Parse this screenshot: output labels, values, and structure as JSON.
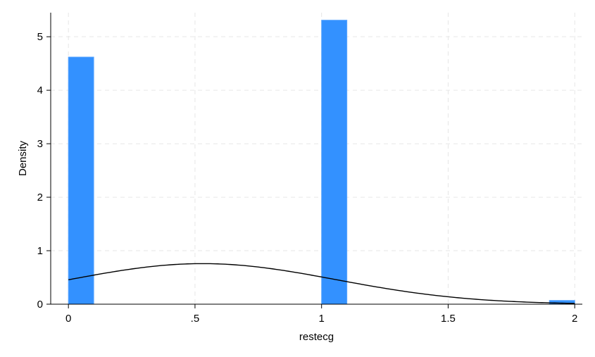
{
  "chart_data": {
    "type": "bar",
    "subtype": "histogram",
    "xlabel": "restecg",
    "ylabel": "Density",
    "xlim": [
      -0.07,
      2.03
    ],
    "ylim": [
      0,
      5.45
    ],
    "x_ticks": [
      0,
      0.5,
      1,
      1.5,
      2
    ],
    "x_tick_labels": [
      "0",
      ".5",
      "1",
      "1.5",
      "2"
    ],
    "y_ticks": [
      0,
      1,
      2,
      3,
      4,
      5
    ],
    "y_tick_labels": [
      "0",
      "1",
      "2",
      "3",
      "4",
      "5"
    ],
    "grid": true,
    "bin_width": 0.1,
    "bars": [
      {
        "x0": 0.0,
        "x1": 0.1,
        "value": 4.62
      },
      {
        "x0": 1.0,
        "x1": 1.1,
        "value": 5.31
      },
      {
        "x0": 1.9,
        "x1": 2.0,
        "value": 0.07
      }
    ],
    "normal_curve": {
      "mean": 0.53,
      "sd": 0.526
    },
    "colors": {
      "bar": "#3391ff",
      "bar_edge": "#5aa6ff",
      "curve": "#000000",
      "grid": "#e6e6e6"
    }
  }
}
